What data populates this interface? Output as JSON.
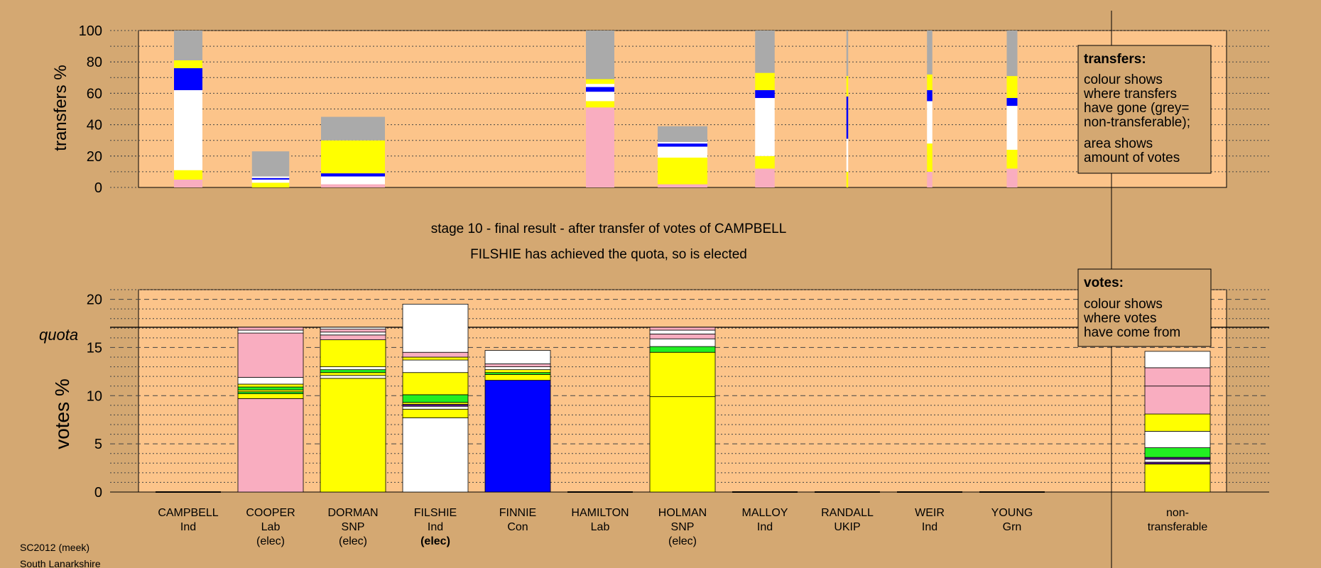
{
  "colors": {
    "background": "#d4a872",
    "panel": "#fcc48a",
    "pink": "#f9adc0",
    "white": "#ffffff",
    "yellow": "#ffff00",
    "blue": "#0000ff",
    "green": "#22ee22",
    "grey": "#aaaaaa",
    "purple": "#551a8b"
  },
  "stage": {
    "line1": "stage 10 - final result - after transfer of votes of CAMPBELL",
    "line2": "FILSHIE has achieved the quota, so is elected"
  },
  "footer": {
    "line1": "SC2012 (meek)",
    "line2": "South Lanarkshire"
  },
  "transfers_legend": {
    "title": "transfers:",
    "lines": [
      "colour shows",
      "where transfers",
      "have gone (grey=",
      "non-transferable);",
      "area shows",
      "amount of votes"
    ]
  },
  "votes_legend": {
    "title": "votes:",
    "lines": [
      "colour shows",
      "where votes",
      "have come from"
    ]
  },
  "candidates": [
    {
      "name": "CAMPBELL",
      "party": "Ind",
      "status": ""
    },
    {
      "name": "COOPER",
      "party": "Lab",
      "status": "(elec)"
    },
    {
      "name": "DORMAN",
      "party": "SNP",
      "status": "(elec)"
    },
    {
      "name": "FILSHIE",
      "party": "Ind",
      "status": "(elec)",
      "status_bold": true
    },
    {
      "name": "FINNIE",
      "party": "Con",
      "status": ""
    },
    {
      "name": "HAMILTON",
      "party": "Lab",
      "status": ""
    },
    {
      "name": "HOLMAN",
      "party": "SNP",
      "status": "(elec)"
    },
    {
      "name": "MALLOY",
      "party": "Ind",
      "status": ""
    },
    {
      "name": "RANDALL",
      "party": "UKIP",
      "status": ""
    },
    {
      "name": "WEIR",
      "party": "Ind",
      "status": ""
    },
    {
      "name": "YOUNG",
      "party": "Grn",
      "status": ""
    },
    {
      "name": "non-",
      "party": "transferable",
      "status": ""
    }
  ],
  "chart_data": [
    {
      "type": "bar",
      "title": "",
      "ylabel": "transfers %",
      "ylim": [
        0,
        100
      ],
      "yticks": [
        0,
        20,
        40,
        60,
        80,
        100
      ],
      "note": "stacked transfer bars; width encodes amount of votes",
      "bars": [
        {
          "column": "CAMPBELL",
          "width": 0.8,
          "segments": [
            [
              "pink",
              0,
              5
            ],
            [
              "yellow",
              5,
              11
            ],
            [
              "white",
              11,
              62
            ],
            [
              "blue",
              62,
              76
            ],
            [
              "yellow",
              76,
              81
            ],
            [
              "grey",
              81,
              100
            ]
          ]
        },
        {
          "column": "COOPER",
          "width": 1.05,
          "segments": [
            [
              "yellow",
              0,
              3
            ],
            [
              "white",
              3,
              5
            ],
            [
              "blue",
              5,
              6
            ],
            [
              "white",
              6,
              7
            ],
            [
              "grey",
              7,
              23
            ]
          ]
        },
        {
          "column": "DORMAN",
          "width": 1.8,
          "segments": [
            [
              "pink",
              0,
              2
            ],
            [
              "white",
              2,
              7
            ],
            [
              "blue",
              7,
              9
            ],
            [
              "yellow",
              9,
              30
            ],
            [
              "grey",
              30,
              45
            ]
          ]
        },
        {
          "column": "HAMILTON",
          "width": 0.8,
          "segments": [
            [
              "pink",
              0,
              51
            ],
            [
              "yellow",
              51,
              55
            ],
            [
              "white",
              55,
              61
            ],
            [
              "blue",
              61,
              64
            ],
            [
              "white",
              64,
              66
            ],
            [
              "yellow",
              66,
              69
            ],
            [
              "grey",
              69,
              100
            ]
          ]
        },
        {
          "column": "HOLMAN",
          "width": 1.4,
          "segments": [
            [
              "pink",
              0,
              2
            ],
            [
              "yellow",
              2,
              19
            ],
            [
              "white",
              19,
              26
            ],
            [
              "blue",
              26,
              28
            ],
            [
              "white",
              28,
              29
            ],
            [
              "grey",
              29,
              39
            ]
          ]
        },
        {
          "column": "MALLOY",
          "width": 0.55,
          "segments": [
            [
              "pink",
              0,
              12
            ],
            [
              "yellow",
              12,
              20
            ],
            [
              "white",
              20,
              57
            ],
            [
              "blue",
              57,
              62
            ],
            [
              "yellow",
              62,
              73
            ],
            [
              "grey",
              73,
              100
            ]
          ]
        },
        {
          "column": "RANDALL",
          "width": 0.05,
          "segments": [
            [
              "yellow",
              0,
              10
            ],
            [
              "white",
              10,
              31
            ],
            [
              "blue",
              31,
              58
            ],
            [
              "yellow",
              58,
              71
            ],
            [
              "grey",
              71,
              100
            ]
          ]
        },
        {
          "column": "WEIR",
          "width": 0.15,
          "segments": [
            [
              "pink",
              0,
              10
            ],
            [
              "yellow",
              10,
              28
            ],
            [
              "white",
              28,
              55
            ],
            [
              "blue",
              55,
              62
            ],
            [
              "yellow",
              62,
              72
            ],
            [
              "grey",
              72,
              100
            ]
          ]
        },
        {
          "column": "YOUNG",
          "width": 0.3,
          "segments": [
            [
              "pink",
              0,
              12
            ],
            [
              "yellow",
              12,
              24
            ],
            [
              "white",
              24,
              52
            ],
            [
              "blue",
              52,
              57
            ],
            [
              "yellow",
              57,
              71
            ],
            [
              "grey",
              71,
              100
            ]
          ]
        }
      ]
    },
    {
      "type": "bar",
      "title": "",
      "ylabel": "votes %",
      "ylim": [
        0,
        21
      ],
      "yticks": [
        0,
        5,
        10,
        15,
        20
      ],
      "quota": {
        "label": "quota",
        "value": 17.1
      },
      "bars": [
        {
          "column": "CAMPBELL",
          "segments": []
        },
        {
          "column": "COOPER",
          "segments": [
            [
              "pink",
              0,
              9.7
            ],
            [
              "yellow",
              9.7,
              10.2
            ],
            [
              "green",
              10.2,
              10.4
            ],
            [
              "yellow",
              10.4,
              10.6
            ],
            [
              "green",
              10.6,
              10.9
            ],
            [
              "yellow",
              10.9,
              11.2
            ],
            [
              "white",
              11.2,
              11.9
            ],
            [
              "pink",
              11.9,
              16.5
            ],
            [
              "white",
              16.5,
              16.8
            ],
            [
              "pink",
              16.8,
              17.1
            ]
          ]
        },
        {
          "column": "DORMAN",
          "segments": [
            [
              "yellow",
              0,
              11.8
            ],
            [
              "white",
              11.8,
              12.1
            ],
            [
              "yellow",
              12.1,
              12.4
            ],
            [
              "green",
              12.4,
              12.7
            ],
            [
              "white",
              12.7,
              13.0
            ],
            [
              "yellow",
              13.0,
              15.8
            ],
            [
              "pink",
              15.8,
              16.3
            ],
            [
              "white",
              16.3,
              16.6
            ],
            [
              "pink",
              16.6,
              16.9
            ],
            [
              "white",
              16.9,
              17.1
            ]
          ]
        },
        {
          "column": "FILSHIE",
          "segments": [
            [
              "white",
              0,
              7.7
            ],
            [
              "yellow",
              7.7,
              8.6
            ],
            [
              "white",
              8.6,
              8.9
            ],
            [
              "purple",
              8.9,
              9.1
            ],
            [
              "yellow",
              9.1,
              9.3
            ],
            [
              "green",
              9.3,
              10.1
            ],
            [
              "yellow",
              10.1,
              12.4
            ],
            [
              "white",
              12.4,
              13.7
            ],
            [
              "yellow",
              13.7,
              14.0
            ],
            [
              "pink",
              14.0,
              14.5
            ],
            [
              "white",
              14.5,
              19.5
            ]
          ]
        },
        {
          "column": "FINNIE",
          "segments": [
            [
              "blue",
              0,
              11.6
            ],
            [
              "yellow",
              11.6,
              12.2
            ],
            [
              "green",
              12.2,
              12.4
            ],
            [
              "yellow",
              12.4,
              12.7
            ],
            [
              "white",
              12.7,
              13.0
            ],
            [
              "pink",
              13.0,
              13.3
            ],
            [
              "white",
              13.3,
              14.7
            ]
          ]
        },
        {
          "column": "HAMILTON",
          "segments": []
        },
        {
          "column": "HOLMAN",
          "segments": [
            [
              "yellow",
              0,
              9.9
            ],
            [
              "yellow",
              9.9,
              14.5
            ],
            [
              "green",
              14.5,
              15.1
            ],
            [
              "white",
              15.1,
              15.9
            ],
            [
              "pink",
              15.9,
              16.4
            ],
            [
              "white",
              16.4,
              16.8
            ],
            [
              "pink",
              16.8,
              17.1
            ]
          ]
        },
        {
          "column": "MALLOY",
          "segments": []
        },
        {
          "column": "RANDALL",
          "segments": []
        },
        {
          "column": "WEIR",
          "segments": []
        },
        {
          "column": "YOUNG",
          "segments": []
        },
        {
          "column": "non-transferable",
          "segments": [
            [
              "yellow",
              0,
              2.9
            ],
            [
              "purple",
              2.9,
              3.1
            ],
            [
              "white",
              3.1,
              3.4
            ],
            [
              "purple",
              3.4,
              3.6
            ],
            [
              "green",
              3.6,
              4.6
            ],
            [
              "white",
              4.6,
              6.3
            ],
            [
              "yellow",
              6.3,
              8.1
            ],
            [
              "pink",
              8.1,
              11.0
            ],
            [
              "pink",
              11.0,
              12.9
            ],
            [
              "white",
              12.9,
              14.6
            ]
          ]
        }
      ]
    }
  ]
}
